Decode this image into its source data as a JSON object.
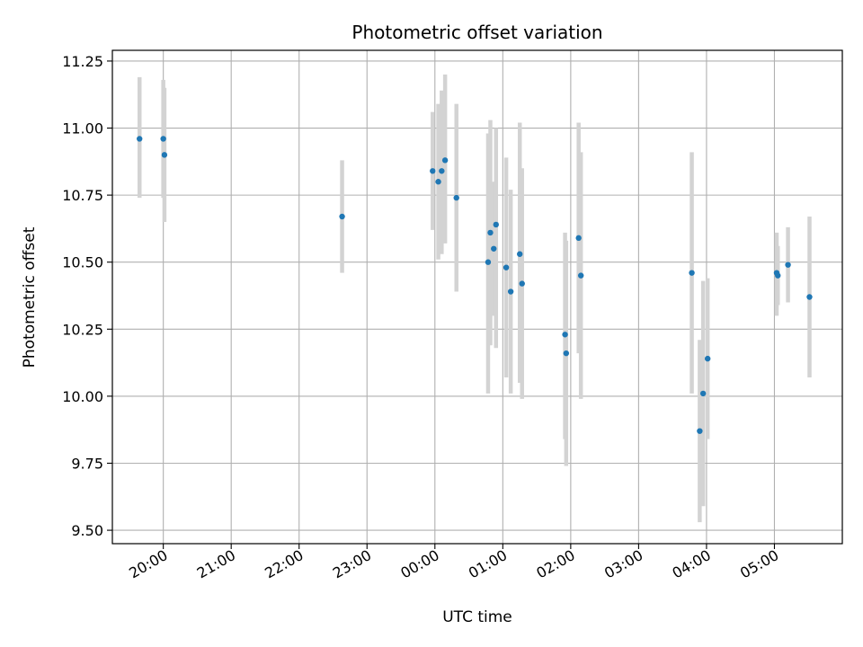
{
  "chart_data": {
    "type": "scatter",
    "title": "Photometric offset variation",
    "xlabel": "UTC time",
    "ylabel": "Photometric offset",
    "x_axis": {
      "kind": "time",
      "range": [
        "19:15",
        "06:00"
      ],
      "ticks": [
        "20:00",
        "21:00",
        "22:00",
        "23:00",
        "00:00",
        "01:00",
        "02:00",
        "03:00",
        "04:00",
        "05:00"
      ]
    },
    "y_axis": {
      "range": [
        9.45,
        11.29
      ],
      "ticks": [
        "9.50",
        "9.75",
        "10.00",
        "10.25",
        "10.50",
        "10.75",
        "11.00",
        "11.25"
      ]
    },
    "grid": true,
    "legend": "none",
    "colors": {
      "point": "#1f77b4",
      "errorbar": "#d3d3d3",
      "grid": "#b0b0b0"
    },
    "points": [
      {
        "time": "19:39",
        "y": 10.96,
        "low": 10.74,
        "high": 11.19
      },
      {
        "time": "20:00",
        "y": 10.96,
        "low": 10.74,
        "high": 11.18
      },
      {
        "time": "20:01",
        "y": 10.9,
        "low": 10.65,
        "high": 11.15
      },
      {
        "time": "22:38",
        "y": 10.67,
        "low": 10.46,
        "high": 10.88
      },
      {
        "time": "23:58",
        "y": 10.84,
        "low": 10.62,
        "high": 11.06
      },
      {
        "time": "00:03",
        "y": 10.8,
        "low": 10.51,
        "high": 11.09
      },
      {
        "time": "00:06",
        "y": 10.84,
        "low": 10.53,
        "high": 11.14
      },
      {
        "time": "00:09",
        "y": 10.88,
        "low": 10.57,
        "high": 11.2
      },
      {
        "time": "00:19",
        "y": 10.74,
        "low": 10.39,
        "high": 11.09
      },
      {
        "time": "00:47",
        "y": 10.5,
        "low": 10.01,
        "high": 10.98
      },
      {
        "time": "00:49",
        "y": 10.61,
        "low": 10.19,
        "high": 11.03
      },
      {
        "time": "00:52",
        "y": 10.55,
        "low": 10.3,
        "high": 10.8
      },
      {
        "time": "00:54",
        "y": 10.64,
        "low": 10.18,
        "high": 11.0
      },
      {
        "time": "01:03",
        "y": 10.48,
        "low": 10.07,
        "high": 10.89
      },
      {
        "time": "01:07",
        "y": 10.39,
        "low": 10.01,
        "high": 10.77
      },
      {
        "time": "01:15",
        "y": 10.53,
        "low": 10.05,
        "high": 11.02
      },
      {
        "time": "01:17",
        "y": 10.42,
        "low": 9.99,
        "high": 10.85
      },
      {
        "time": "01:55",
        "y": 10.23,
        "low": 9.84,
        "high": 10.61
      },
      {
        "time": "01:56",
        "y": 10.16,
        "low": 9.74,
        "high": 10.58
      },
      {
        "time": "02:07",
        "y": 10.59,
        "low": 10.16,
        "high": 11.02
      },
      {
        "time": "02:09",
        "y": 10.45,
        "low": 9.99,
        "high": 10.91
      },
      {
        "time": "03:47",
        "y": 10.46,
        "low": 10.01,
        "high": 10.91
      },
      {
        "time": "03:54",
        "y": 9.87,
        "low": 9.53,
        "high": 10.21
      },
      {
        "time": "03:57",
        "y": 10.01,
        "low": 9.59,
        "high": 10.43
      },
      {
        "time": "04:01",
        "y": 10.14,
        "low": 9.84,
        "high": 10.44
      },
      {
        "time": "05:02",
        "y": 10.46,
        "low": 10.3,
        "high": 10.61
      },
      {
        "time": "05:03",
        "y": 10.45,
        "low": 10.34,
        "high": 10.56
      },
      {
        "time": "05:12",
        "y": 10.49,
        "low": 10.35,
        "high": 10.63
      },
      {
        "time": "05:31",
        "y": 10.37,
        "low": 10.07,
        "high": 10.67
      }
    ]
  }
}
